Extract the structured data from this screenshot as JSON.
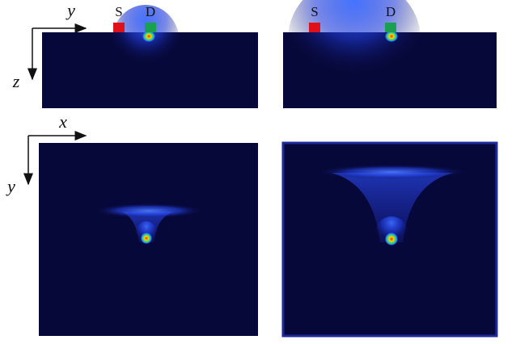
{
  "axes_top": {
    "horizontal": "y",
    "vertical": "z"
  },
  "axes_bottom": {
    "horizontal": "x",
    "vertical": "y"
  },
  "panels": {
    "top_left": {
      "source": "S",
      "drain": "D"
    },
    "top_right": {
      "source": "S",
      "drain": "D"
    }
  }
}
